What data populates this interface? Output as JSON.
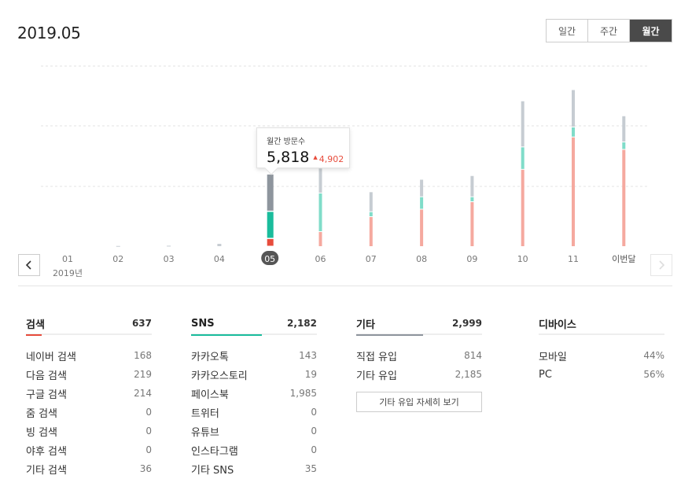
{
  "header": {
    "title": "2019.05"
  },
  "period_tabs": [
    {
      "label": "일간",
      "active": false
    },
    {
      "label": "주간",
      "active": false
    },
    {
      "label": "월간",
      "active": true
    }
  ],
  "chart_data": {
    "type": "bar",
    "stacked": true,
    "grid": true,
    "categories": [
      "01",
      "02",
      "03",
      "04",
      "05",
      "06",
      "07",
      "08",
      "09",
      "10",
      "11",
      "이번달"
    ],
    "year_label": "2019년",
    "selected_index": 4,
    "series": [
      {
        "values": [
          0,
          0,
          0,
          0,
          637,
          1200,
          2400,
          3000,
          3600,
          6200,
          8800,
          7800
        ]
      },
      {
        "values": [
          0,
          0,
          0,
          0,
          2182,
          3100,
          400,
          1000,
          400,
          1800,
          800,
          600
        ]
      },
      {
        "values": [
          0,
          80,
          100,
          250,
          2999,
          2000,
          1600,
          1400,
          1700,
          3700,
          3000,
          2100
        ]
      }
    ],
    "colors": {
      "search": "#f5a99f",
      "sns": "#80dcc9",
      "etc": "#c6ccd2",
      "search_selected": "#e74c3c",
      "sns_selected": "#1abc9c",
      "etc_selected": "#8e959d"
    },
    "ylim": [
      0,
      12000
    ],
    "gridlines": [
      5000,
      10000,
      15000
    ]
  },
  "tooltip": {
    "label": "월간 방문수",
    "value": "5,818",
    "delta": "4,902"
  },
  "panels": [
    {
      "title": "검색",
      "total": "637",
      "color": "#e74c3c",
      "rows": [
        {
          "label": "네이버 검색",
          "value": "168"
        },
        {
          "label": "다음 검색",
          "value": "219"
        },
        {
          "label": "구글 검색",
          "value": "214"
        },
        {
          "label": "줌 검색",
          "value": "0"
        },
        {
          "label": "빙 검색",
          "value": "0"
        },
        {
          "label": "야후 검색",
          "value": "0"
        },
        {
          "label": "기타 검색",
          "value": "36"
        }
      ]
    },
    {
      "title": "SNS",
      "total": "2,182",
      "color": "#1abc9c",
      "rows": [
        {
          "label": "카카오톡",
          "value": "143"
        },
        {
          "label": "카카오스토리",
          "value": "19"
        },
        {
          "label": "페이스북",
          "value": "1,985"
        },
        {
          "label": "트위터",
          "value": "0"
        },
        {
          "label": "유튜브",
          "value": "0"
        },
        {
          "label": "인스타그램",
          "value": "0"
        },
        {
          "label": "기타 SNS",
          "value": "35"
        }
      ]
    },
    {
      "title": "기타",
      "total": "2,999",
      "color": "#8e959d",
      "rows": [
        {
          "label": "직접 유입",
          "value": "814"
        },
        {
          "label": "기타 유입",
          "value": "2,185"
        }
      ],
      "button_label": "기타 유입 자세히 보기"
    },
    {
      "title": "디바이스",
      "total": "",
      "color": "#eeeeee",
      "rows": [
        {
          "label": "모바일",
          "value": "44%"
        },
        {
          "label": "PC",
          "value": "56%"
        }
      ]
    }
  ],
  "icons": {
    "prev": "chevron-left-icon",
    "next": "chevron-right-icon"
  }
}
